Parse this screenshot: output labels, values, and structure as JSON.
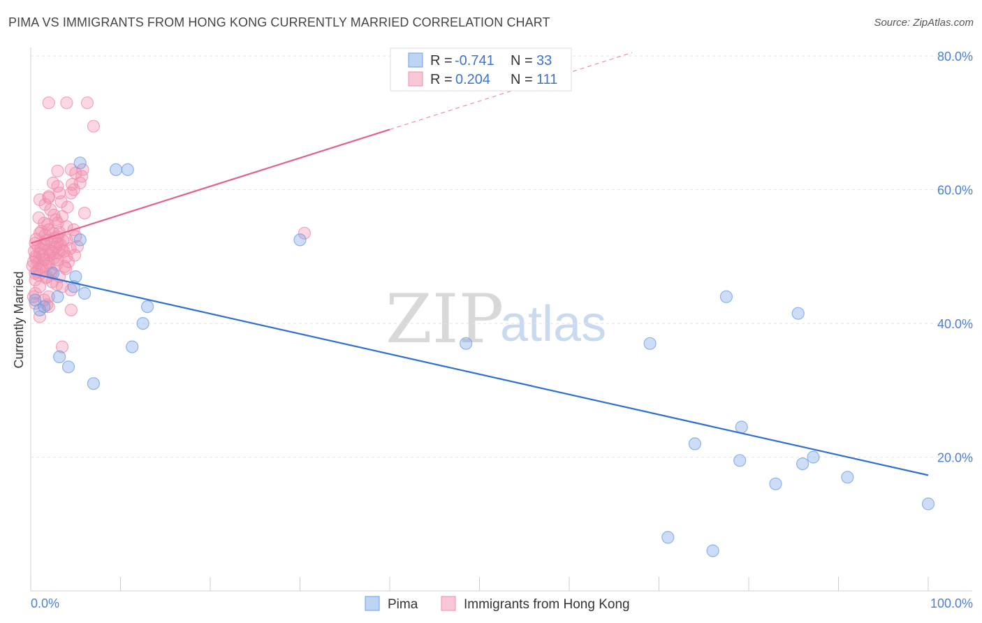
{
  "header": {
    "title": "PIMA VS IMMIGRANTS FROM HONG KONG CURRENTLY MARRIED CORRELATION CHART",
    "source": "Source: ZipAtlas.com"
  },
  "watermark": {
    "zip": "ZIP",
    "atlas": "atlas"
  },
  "legend": {
    "r_label": "R =",
    "n_label": "N =",
    "rows": [
      {
        "r_value": "-0.741",
        "n_value": "33"
      },
      {
        "r_value": "0.204",
        "n_value": "111"
      }
    ]
  },
  "bottom_legend": [
    "Pima",
    "Immigrants from Hong Kong"
  ],
  "chart_data": {
    "type": "scatter",
    "title": "PIMA VS IMMIGRANTS FROM HONG KONG CURRENTLY MARRIED CORRELATION CHART",
    "xlabel": "",
    "ylabel": "Currently Married",
    "xlim": [
      0,
      100
    ],
    "ylim": [
      0,
      82
    ],
    "x_tick_labels": [
      "0.0%",
      "100.0%"
    ],
    "y_ticks": [
      20,
      40,
      60,
      80
    ],
    "y_tick_labels": [
      "20.0%",
      "40.0%",
      "60.0%",
      "80.0%"
    ],
    "colors": {
      "pima": "#6f9ee6",
      "pima_line": "#2f6fd0",
      "hk": "#f08cab",
      "hk_line": "#e4608a"
    },
    "series": [
      {
        "name": "Pima",
        "R": -0.741,
        "N": 33,
        "trend": {
          "x": [
            0,
            100
          ],
          "y": [
            47.5,
            17.3
          ]
        },
        "points": [
          [
            0.5,
            43.5
          ],
          [
            1.5,
            42.5
          ],
          [
            2.5,
            47.5
          ],
          [
            3.0,
            44.0
          ],
          [
            3.2,
            35.0
          ],
          [
            4.2,
            33.5
          ],
          [
            4.8,
            45.5
          ],
          [
            5.0,
            47.0
          ],
          [
            5.5,
            52.5
          ],
          [
            5.5,
            64.0
          ],
          [
            6.0,
            44.5
          ],
          [
            7.0,
            31.0
          ],
          [
            9.5,
            63.0
          ],
          [
            10.8,
            63.0
          ],
          [
            11.3,
            36.5
          ],
          [
            12.5,
            40.0
          ],
          [
            13.0,
            42.5
          ],
          [
            30.0,
            52.5
          ],
          [
            48.5,
            37.0
          ],
          [
            69.0,
            37.0
          ],
          [
            71.0,
            8.0
          ],
          [
            74.0,
            22.0
          ],
          [
            76.0,
            6.0
          ],
          [
            77.5,
            44.0
          ],
          [
            79.0,
            19.5
          ],
          [
            79.2,
            24.5
          ],
          [
            83.0,
            16.0
          ],
          [
            85.5,
            41.5
          ],
          [
            86.0,
            19.0
          ],
          [
            87.2,
            20.0
          ],
          [
            91.0,
            17.0
          ],
          [
            100.0,
            13.0
          ],
          [
            1.0,
            42.0
          ]
        ]
      },
      {
        "name": "Immigrants from Hong Kong",
        "R": 0.204,
        "N": 111,
        "trend": {
          "x": [
            0,
            40
          ],
          "y": [
            52.0,
            69.0
          ]
        },
        "trend_dashed": {
          "x": [
            40,
            67
          ],
          "y": [
            69.0,
            80.5
          ]
        },
        "points": [
          [
            2.0,
            73.0
          ],
          [
            4.0,
            73.0
          ],
          [
            6.3,
            73.0
          ],
          [
            7.0,
            69.5
          ],
          [
            4.5,
            63.0
          ],
          [
            5.0,
            62.5
          ],
          [
            5.5,
            61.0
          ],
          [
            4.8,
            60.0
          ],
          [
            2.5,
            61.0
          ],
          [
            3.0,
            60.5
          ],
          [
            4.5,
            59.5
          ],
          [
            3.2,
            59.5
          ],
          [
            2.0,
            59.0
          ],
          [
            1.0,
            58.5
          ],
          [
            2.2,
            57.0
          ],
          [
            6.0,
            56.5
          ],
          [
            3.5,
            56.0
          ],
          [
            2.8,
            55.5
          ],
          [
            1.5,
            55.0
          ],
          [
            3.0,
            55.0
          ],
          [
            4.0,
            54.5
          ],
          [
            2.0,
            54.0
          ],
          [
            1.0,
            53.5
          ],
          [
            2.5,
            53.5
          ],
          [
            3.0,
            53.0
          ],
          [
            5.0,
            53.0
          ],
          [
            4.0,
            52.5
          ],
          [
            1.8,
            52.5
          ],
          [
            0.5,
            52.0
          ],
          [
            1.5,
            52.0
          ],
          [
            3.0,
            52.0
          ],
          [
            5.2,
            51.5
          ],
          [
            0.8,
            51.5
          ],
          [
            2.0,
            51.0
          ],
          [
            3.5,
            51.0
          ],
          [
            1.0,
            50.5
          ],
          [
            2.5,
            50.5
          ],
          [
            4.0,
            50.0
          ],
          [
            0.5,
            50.0
          ],
          [
            1.5,
            49.5
          ],
          [
            3.0,
            49.5
          ],
          [
            2.0,
            49.0
          ],
          [
            0.8,
            49.0
          ],
          [
            1.2,
            48.5
          ],
          [
            3.8,
            48.5
          ],
          [
            2.2,
            48.0
          ],
          [
            0.5,
            47.5
          ],
          [
            1.8,
            47.0
          ],
          [
            3.2,
            47.0
          ],
          [
            0.5,
            46.5
          ],
          [
            1.0,
            45.5
          ],
          [
            3.5,
            45.5
          ],
          [
            4.5,
            45.0
          ],
          [
            0.5,
            44.5
          ],
          [
            2.0,
            44.0
          ],
          [
            1.5,
            43.5
          ],
          [
            0.5,
            43.0
          ],
          [
            2.0,
            42.5
          ],
          [
            4.5,
            42.0
          ],
          [
            1.0,
            41.0
          ],
          [
            3.5,
            36.5
          ],
          [
            30.5,
            53.5
          ],
          [
            5.8,
            63.0
          ],
          [
            4.8,
            54.0
          ],
          [
            2.7,
            52.8
          ],
          [
            1.3,
            50.2
          ],
          [
            0.3,
            49.2
          ],
          [
            2.9,
            48.8
          ],
          [
            3.7,
            50.8
          ],
          [
            1.6,
            53.2
          ],
          [
            0.7,
            47.8
          ],
          [
            2.4,
            46.2
          ],
          [
            4.2,
            49.2
          ],
          [
            3.3,
            51.8
          ],
          [
            1.9,
            54.8
          ],
          [
            0.9,
            48.2
          ],
          [
            2.6,
            49.8
          ],
          [
            1.1,
            51.2
          ],
          [
            3.9,
            48.2
          ],
          [
            2.1,
            50.2
          ],
          [
            0.4,
            50.8
          ],
          [
            1.7,
            48.6
          ],
          [
            2.8,
            51.4
          ],
          [
            0.6,
            52.6
          ],
          [
            3.1,
            50.6
          ],
          [
            4.4,
            51.2
          ],
          [
            1.4,
            49.6
          ],
          [
            2.3,
            47.6
          ],
          [
            0.2,
            48.6
          ],
          [
            3.6,
            52.4
          ],
          [
            1.2,
            53.8
          ],
          [
            2.6,
            56.2
          ],
          [
            4.1,
            57.4
          ],
          [
            3.4,
            58.2
          ],
          [
            2.0,
            58.8
          ],
          [
            0.9,
            55.8
          ],
          [
            1.6,
            57.8
          ],
          [
            2.9,
            45.8
          ],
          [
            0.3,
            44.0
          ],
          [
            1.8,
            42.8
          ],
          [
            4.6,
            60.8
          ],
          [
            3.0,
            62.8
          ],
          [
            5.7,
            62.0
          ],
          [
            2.3,
            52.2
          ],
          [
            0.6,
            49.8
          ],
          [
            1.5,
            51.8
          ],
          [
            3.2,
            53.6
          ],
          [
            2.4,
            50.8
          ],
          [
            0.9,
            47.2
          ],
          [
            4.9,
            50.2
          ],
          [
            1.7,
            46.8
          ]
        ]
      }
    ]
  }
}
